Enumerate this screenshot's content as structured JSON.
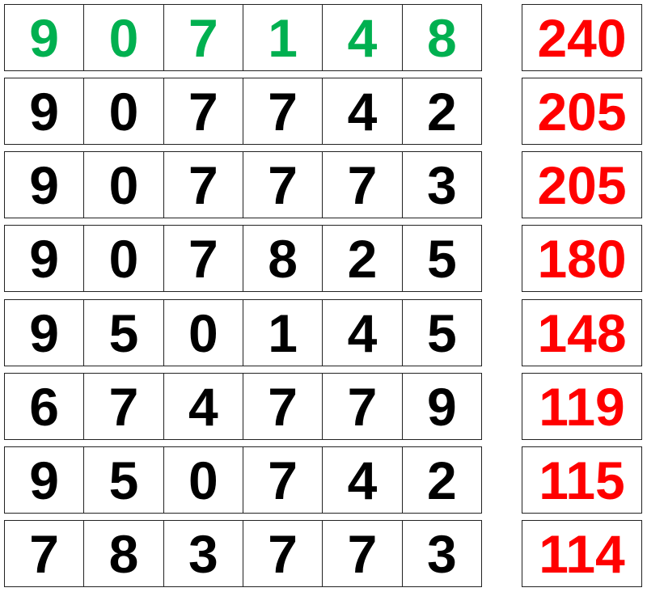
{
  "colors": {
    "target": "#00b050",
    "digit": "#000000",
    "score": "#ff0000"
  },
  "rows": [
    {
      "digits": [
        "9",
        "0",
        "7",
        "1",
        "4",
        "8"
      ],
      "score": "240",
      "target": true
    },
    {
      "digits": [
        "9",
        "0",
        "7",
        "7",
        "4",
        "2"
      ],
      "score": "205",
      "target": false
    },
    {
      "digits": [
        "9",
        "0",
        "7",
        "7",
        "7",
        "3"
      ],
      "score": "205",
      "target": false
    },
    {
      "digits": [
        "9",
        "0",
        "7",
        "8",
        "2",
        "5"
      ],
      "score": "180",
      "target": false
    },
    {
      "digits": [
        "9",
        "5",
        "0",
        "1",
        "4",
        "5"
      ],
      "score": "148",
      "target": false
    },
    {
      "digits": [
        "6",
        "7",
        "4",
        "7",
        "7",
        "9"
      ],
      "score": "119",
      "target": false
    },
    {
      "digits": [
        "9",
        "5",
        "0",
        "7",
        "4",
        "2"
      ],
      "score": "115",
      "target": false
    },
    {
      "digits": [
        "7",
        "8",
        "3",
        "7",
        "7",
        "3"
      ],
      "score": "114",
      "target": false
    }
  ]
}
